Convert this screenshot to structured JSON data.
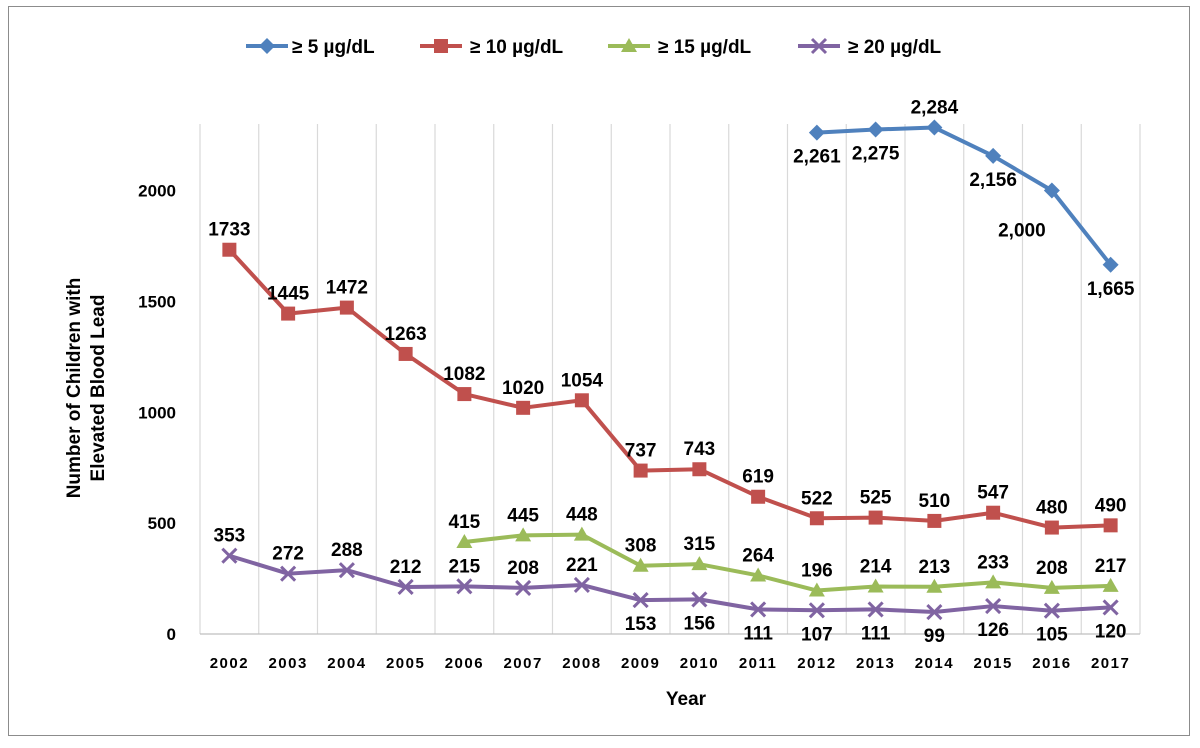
{
  "chart_data": {
    "type": "line",
    "title": "",
    "xlabel": "Year",
    "ylabel": [
      "Number of Children with",
      "Elevated Blood Lead"
    ],
    "ylim": [
      0,
      2300
    ],
    "yticks": [
      "0",
      "500",
      "1000",
      "1500",
      "2000"
    ],
    "ytick_values": [
      0,
      500,
      1000,
      1500,
      2000
    ],
    "categories": [
      "2002",
      "2003",
      "2004",
      "2005",
      "2006",
      "2007",
      "2008",
      "2009",
      "2010",
      "2011",
      "2012",
      "2013",
      "2014",
      "2015",
      "2016",
      "2017"
    ],
    "grid": "vertical",
    "legend_position": "top",
    "series": [
      {
        "name": "≥ 5 µg/dL",
        "color": "#4f81bd",
        "marker": "diamond",
        "values": [
          null,
          null,
          null,
          null,
          null,
          null,
          null,
          null,
          null,
          null,
          2261,
          2275,
          2284,
          2156,
          2000,
          1665
        ],
        "labels": [
          null,
          null,
          null,
          null,
          null,
          null,
          null,
          null,
          null,
          null,
          "2,261",
          "2,275",
          "2,284",
          "2,156",
          "2,000",
          "1,665"
        ]
      },
      {
        "name": "≥ 10 µg/dL",
        "color": "#c0504d",
        "marker": "square",
        "values": [
          1733,
          1445,
          1472,
          1263,
          1082,
          1020,
          1054,
          737,
          743,
          619,
          522,
          525,
          510,
          547,
          480,
          490
        ],
        "labels": [
          "1733",
          "1445",
          "1472",
          "1263",
          "1082",
          "1020",
          "1054",
          "737",
          "743",
          "619",
          "522",
          "525",
          "510",
          "547",
          "480",
          "490"
        ]
      },
      {
        "name": "≥ 15 µg/dL",
        "color": "#9bbb59",
        "marker": "triangle",
        "values": [
          null,
          null,
          null,
          null,
          415,
          445,
          448,
          308,
          315,
          264,
          196,
          214,
          213,
          233,
          208,
          217
        ],
        "labels": [
          null,
          null,
          null,
          null,
          "415",
          "445",
          "448",
          "308",
          "315",
          "264",
          "196",
          "214",
          "213",
          "233",
          "208",
          "217"
        ]
      },
      {
        "name": "≥ 20 µg/dL",
        "color": "#8064a2",
        "marker": "x",
        "values": [
          353,
          272,
          288,
          212,
          215,
          208,
          221,
          153,
          156,
          111,
          107,
          111,
          99,
          126,
          105,
          120
        ],
        "labels": [
          "353",
          "272",
          "288",
          "212",
          "215",
          "208",
          "221",
          "153",
          "156",
          "111",
          "107",
          "111",
          "99",
          "126",
          "105",
          "120"
        ]
      }
    ]
  }
}
